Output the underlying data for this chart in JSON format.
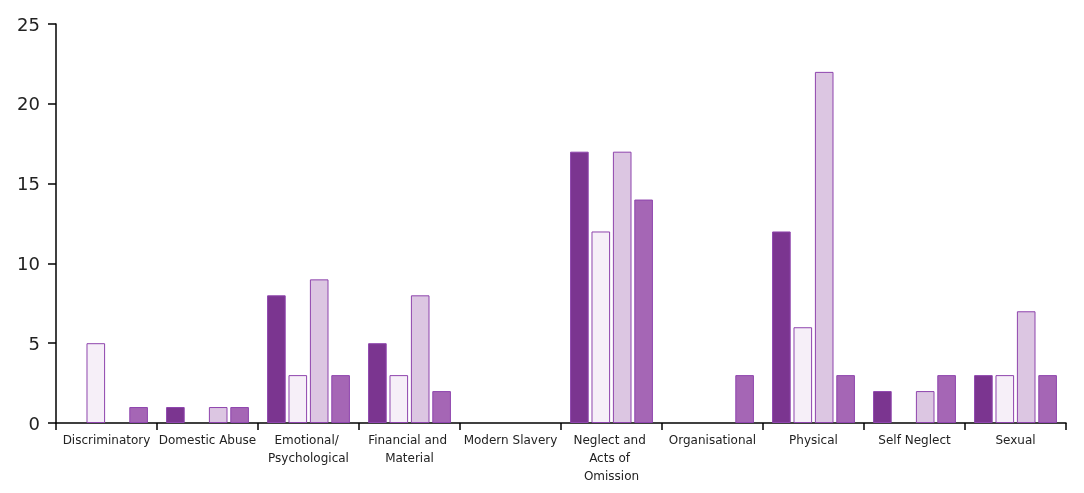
{
  "chart_data": {
    "type": "bar",
    "categories": [
      "Discriminatory",
      "Domestic Abuse",
      "Emotional/ Psychological",
      "Financial and Material",
      "Modern Slavery",
      "Neglect and Acts of Omission",
      "Organisational",
      "Physical",
      "Self Neglect",
      "Sexual"
    ],
    "series": [
      {
        "color": "#7b3590",
        "values": [
          0,
          1,
          8,
          5,
          0,
          17,
          0,
          12,
          2,
          3
        ]
      },
      {
        "color": "#f6eff8",
        "values": [
          5,
          0,
          3,
          3,
          0,
          12,
          0,
          6,
          0,
          3
        ]
      },
      {
        "color": "#dcc6e2",
        "values": [
          0,
          1,
          9,
          8,
          0,
          17,
          0,
          22,
          2,
          7
        ]
      },
      {
        "color": "#a566b5",
        "values": [
          1,
          1,
          3,
          2,
          0,
          14,
          3,
          3,
          3,
          3
        ]
      }
    ],
    "ylim": [
      0,
      25
    ],
    "yticks": [
      0,
      5,
      10,
      15,
      20,
      25
    ],
    "grid": false
  }
}
